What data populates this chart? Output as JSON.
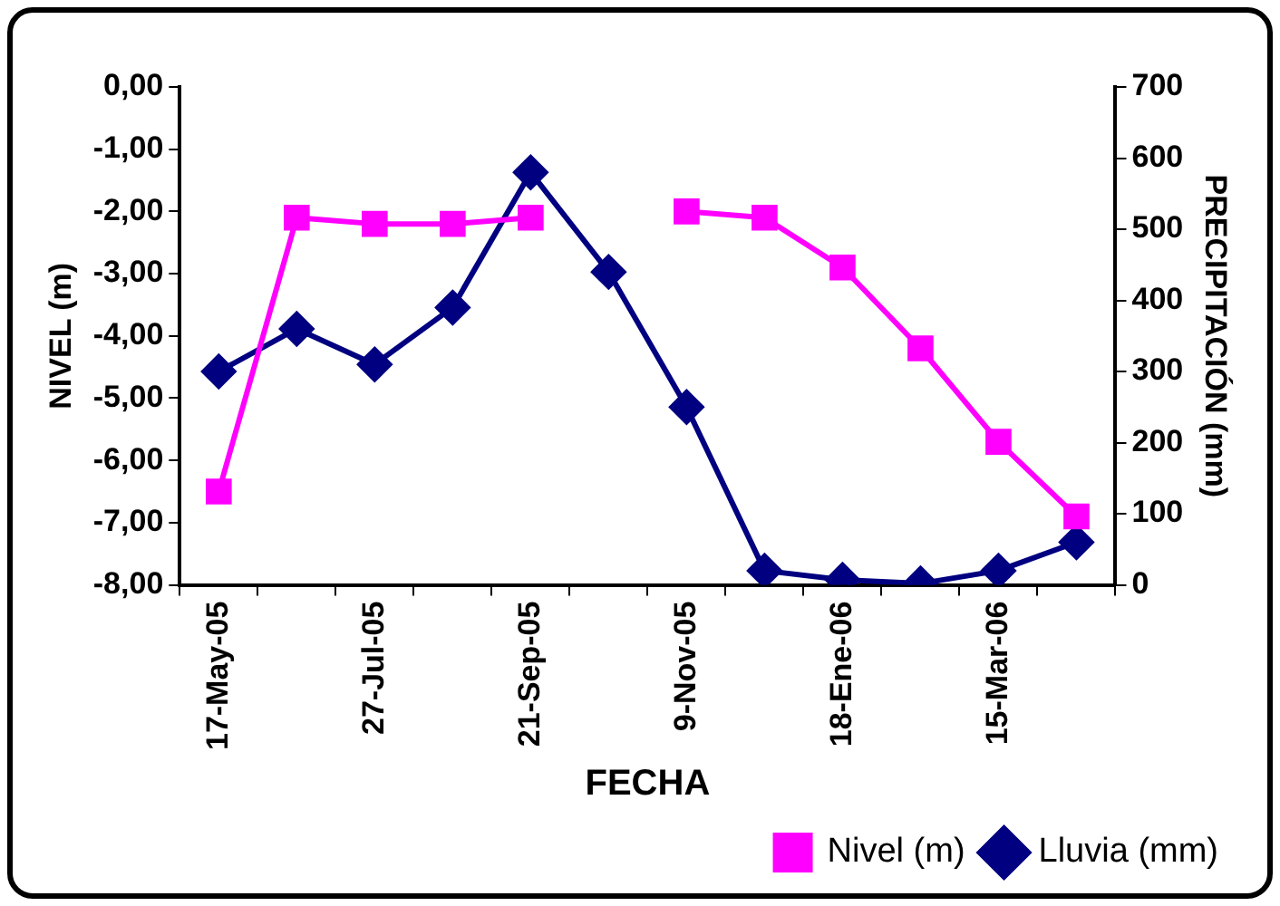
{
  "chart_data": {
    "type": "line",
    "xlabel": "FECHA",
    "ylabel": "NIVEL (m)",
    "y2label": "PRECIPITACIÓN (mm)",
    "categories": [
      "17-May-05",
      null,
      "27-Jul-05",
      null,
      "21-Sep-05",
      null,
      "9-Nov-05",
      null,
      "18-Ene-06",
      null,
      "15-Mar-06",
      null
    ],
    "series": [
      {
        "name": "Nivel (m)",
        "color": "#ff00ff",
        "marker": "square",
        "values": [
          -6.5,
          -2.1,
          -2.2,
          -2.2,
          -2.1,
          null,
          -2.0,
          -2.1,
          -2.9,
          -4.2,
          -5.7,
          -6.9
        ]
      },
      {
        "name": "Lluvia (mm)",
        "color": "#000080",
        "marker": "diamond",
        "axis": "y2",
        "values": [
          300,
          360,
          310,
          390,
          580,
          440,
          250,
          20,
          7,
          2,
          20,
          60
        ]
      }
    ],
    "ylim": [
      -8,
      0
    ],
    "yticks": [
      {
        "value": 0,
        "label": "0,00"
      },
      {
        "value": -1,
        "label": "-1,00"
      },
      {
        "value": -2,
        "label": "-2,00"
      },
      {
        "value": -3,
        "label": "-3,00"
      },
      {
        "value": -4,
        "label": "-4,00"
      },
      {
        "value": -5,
        "label": "-5,00"
      },
      {
        "value": -6,
        "label": "-6,00"
      },
      {
        "value": -7,
        "label": "-7,00"
      },
      {
        "value": -8,
        "label": "-8,00"
      }
    ],
    "y2lim": [
      0,
      700
    ],
    "y2ticks": [
      0,
      100,
      200,
      300,
      400,
      500,
      600,
      700
    ],
    "grid": false,
    "legend": "bottom right",
    "line_style": "solid"
  }
}
